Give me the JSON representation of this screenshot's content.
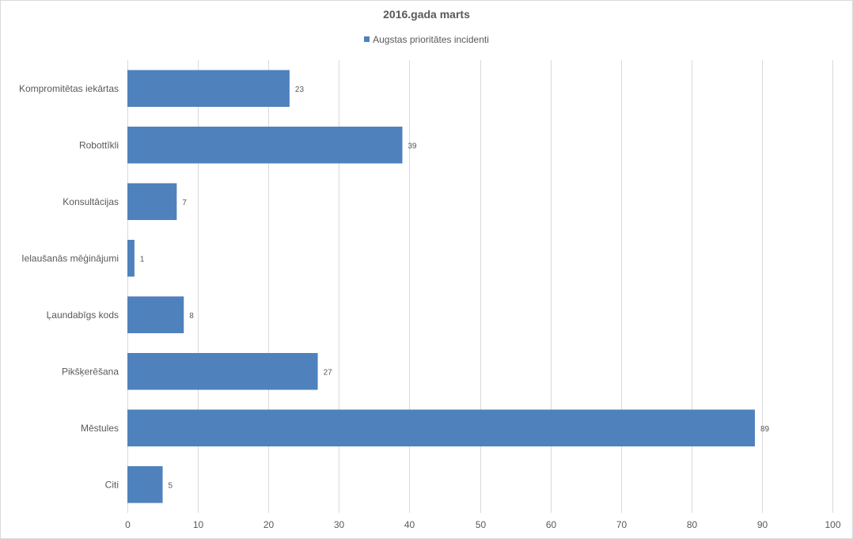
{
  "chart_data": {
    "type": "bar",
    "orientation": "horizontal",
    "title": "2016.gada marts",
    "categories": [
      "Kompromitētas iekārtas",
      "Robottīkli",
      "Konsultācijas",
      "Ielaušanās mēģinājumi",
      "Ļaundabīgs kods",
      "Pikšķerēšana",
      "Mēstules",
      "Citi"
    ],
    "series": [
      {
        "name": "Augstas prioritātes incidenti",
        "values": [
          23,
          39,
          7,
          1,
          8,
          27,
          89,
          5
        ],
        "color": "#4f81bd"
      }
    ],
    "xlim": [
      0,
      100
    ],
    "xticks": [
      0,
      10,
      20,
      30,
      40,
      50,
      60,
      70,
      80,
      90,
      100
    ],
    "grid": true,
    "legend_position": "top",
    "data_labels": true,
    "colors": {
      "bar": "#4f81bd",
      "grid": "#d9d9d9",
      "text": "#595959"
    }
  }
}
